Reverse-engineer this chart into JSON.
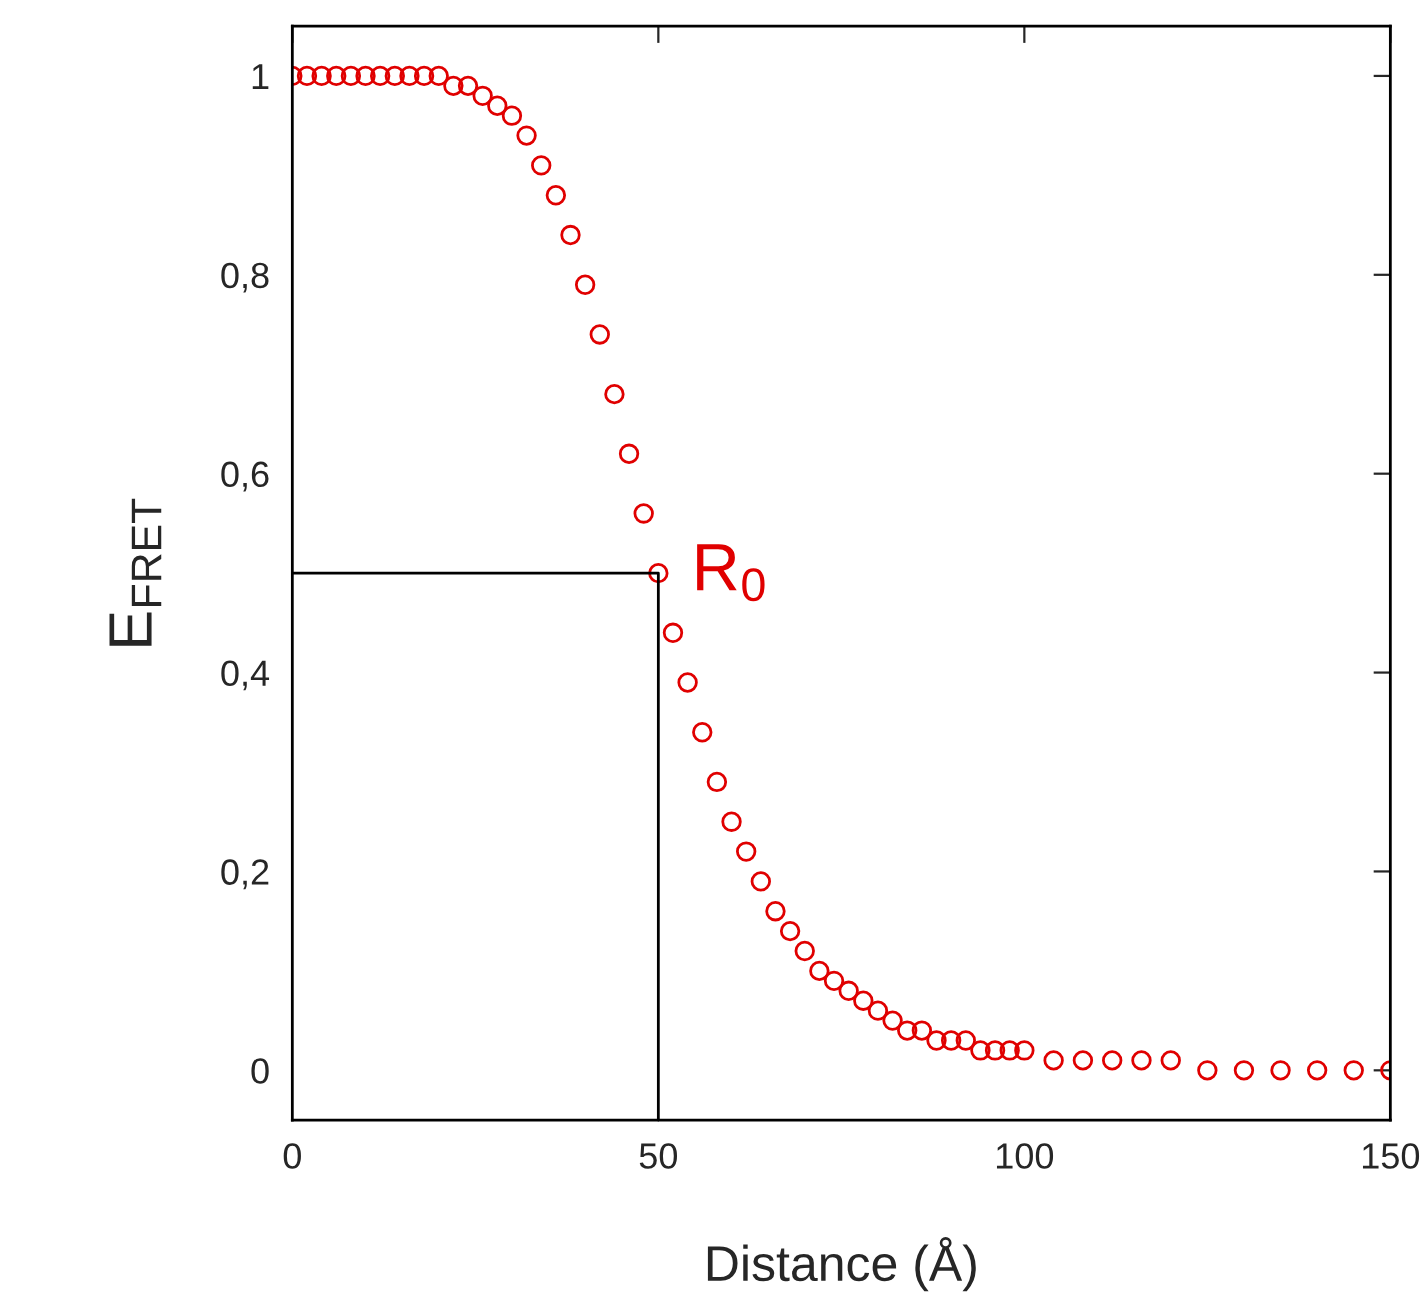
{
  "chart_data": {
    "type": "scatter",
    "xlabel": "Distance (Å)",
    "ylabel": "E$_{FRET}$",
    "xlim": [
      0,
      150
    ],
    "ylim": [
      -0.05,
      1.05
    ],
    "xticks": [
      0,
      50,
      100,
      150
    ],
    "yticks": [
      0,
      {
        "value": 0.2,
        "label": "0,2"
      },
      {
        "value": 0.4,
        "label": "0,4"
      },
      {
        "value": 0.6,
        "label": "0,6"
      },
      {
        "value": 0.8,
        "label": "0,8"
      },
      1
    ],
    "grid": false,
    "marker": "circle",
    "series": [
      {
        "color": "#e00000",
        "x": [
          0,
          2,
          4,
          6,
          8,
          10,
          12,
          14,
          16,
          18,
          20,
          22,
          24,
          26,
          28,
          30,
          32,
          34,
          36,
          38,
          40,
          42,
          44,
          46,
          48,
          50,
          52,
          54,
          56,
          58,
          60,
          62,
          64,
          66,
          68,
          70,
          72,
          74,
          76,
          78,
          80,
          82,
          84,
          86,
          88,
          90,
          92,
          94,
          96,
          98,
          100,
          104,
          108,
          112,
          116,
          120,
          125,
          130,
          135,
          140,
          145,
          150
        ],
        "values": [
          1,
          1,
          1,
          1,
          1,
          1,
          1,
          1,
          1,
          1,
          1,
          0.99,
          0.99,
          0.98,
          0.97,
          0.96,
          0.94,
          0.91,
          0.88,
          0.84,
          0.79,
          0.74,
          0.68,
          0.62,
          0.56,
          0.5,
          0.44,
          0.39,
          0.34,
          0.29,
          0.25,
          0.22,
          0.19,
          0.16,
          0.14,
          0.12,
          0.1,
          0.09,
          0.08,
          0.07,
          0.06,
          0.05,
          0.04,
          0.04,
          0.03,
          0.03,
          0.03,
          0.02,
          0.02,
          0.02,
          0.02,
          0.01,
          0.01,
          0.01,
          0.01,
          0.01,
          0,
          0,
          0,
          0,
          0,
          0
        ]
      },
      {
        "type": "line",
        "color": "#000000",
        "marker": "none",
        "x": [
          0,
          50,
          50
        ],
        "values": [
          0.5,
          0.5,
          -0.05
        ]
      }
    ],
    "annotations": [
      {
        "text": "R$_{0}$",
        "x": 50,
        "y": 0.5
      }
    ]
  }
}
